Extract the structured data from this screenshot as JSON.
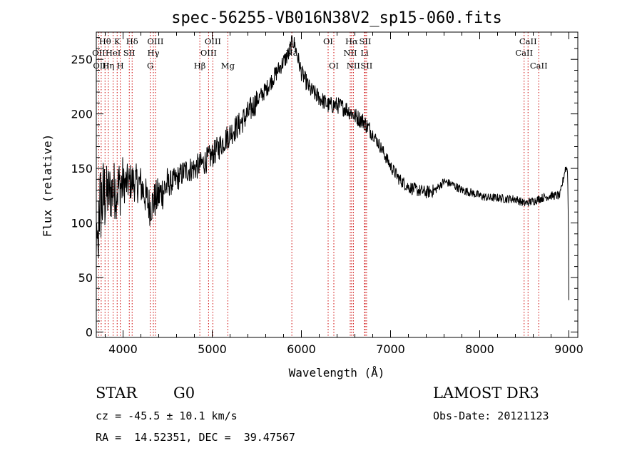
{
  "chart_data": {
    "type": "line",
    "title": "spec-56255-VB016N38V2_sp15-060.fits",
    "xlabel": "Wavelength (Å)",
    "ylabel": "Flux (relative)",
    "xlim": [
      3700,
      9100
    ],
    "ylim": [
      -5,
      275
    ],
    "xticks": [
      4000,
      5000,
      6000,
      7000,
      8000,
      9000
    ],
    "yticks": [
      0,
      50,
      100,
      150,
      200,
      250
    ],
    "continuum": [
      [
        3700,
        110
      ],
      [
        3800,
        125
      ],
      [
        3900,
        130
      ],
      [
        4000,
        135
      ],
      [
        4100,
        138
      ],
      [
        4200,
        135
      ],
      [
        4300,
        115
      ],
      [
        4400,
        125
      ],
      [
        4500,
        135
      ],
      [
        4600,
        140
      ],
      [
        4700,
        148
      ],
      [
        4800,
        150
      ],
      [
        4900,
        155
      ],
      [
        5000,
        162
      ],
      [
        5100,
        172
      ],
      [
        5200,
        182
      ],
      [
        5300,
        190
      ],
      [
        5400,
        200
      ],
      [
        5500,
        212
      ],
      [
        5600,
        222
      ],
      [
        5700,
        235
      ],
      [
        5800,
        248
      ],
      [
        5860,
        255
      ],
      [
        5900,
        268
      ],
      [
        5930,
        262
      ],
      [
        6000,
        238
      ],
      [
        6100,
        222
      ],
      [
        6200,
        215
      ],
      [
        6300,
        208
      ],
      [
        6400,
        208
      ],
      [
        6500,
        205
      ],
      [
        6600,
        198
      ],
      [
        6700,
        193
      ],
      [
        6800,
        182
      ],
      [
        6900,
        168
      ],
      [
        7000,
        152
      ],
      [
        7100,
        140
      ],
      [
        7200,
        133
      ],
      [
        7300,
        130
      ],
      [
        7400,
        128
      ],
      [
        7500,
        130
      ],
      [
        7600,
        138
      ],
      [
        7700,
        135
      ],
      [
        7800,
        130
      ],
      [
        7900,
        128
      ],
      [
        8000,
        125
      ],
      [
        8100,
        123
      ],
      [
        8200,
        123
      ],
      [
        8300,
        122
      ],
      [
        8400,
        122
      ],
      [
        8500,
        118
      ],
      [
        8600,
        120
      ],
      [
        8700,
        123
      ],
      [
        8800,
        125
      ],
      [
        8900,
        125
      ],
      [
        8960,
        150
      ],
      [
        8985,
        150
      ],
      [
        8995,
        95
      ],
      [
        9000,
        30
      ]
    ],
    "spectral_lines": [
      {
        "label": "Hθ",
        "wavelength": 3798,
        "row": 0
      },
      {
        "label": "OII",
        "wavelength": 3727,
        "row": 1
      },
      {
        "label": "OIII",
        "wavelength": 3755,
        "row": 2
      },
      {
        "label": "K",
        "wavelength": 3934,
        "row": 0
      },
      {
        "label": "Hη",
        "wavelength": 3835,
        "row": 2
      },
      {
        "label": "HeI",
        "wavelength": 3889,
        "row": 1
      },
      {
        "label": "SII",
        "wavelength": 4070,
        "row": 1
      },
      {
        "label": "H",
        "wavelength": 3969,
        "row": 2
      },
      {
        "label": "Hδ",
        "wavelength": 4102,
        "row": 0
      },
      {
        "label": "OIII",
        "wavelength": 4363,
        "row": 0
      },
      {
        "label": "Hγ",
        "wavelength": 4340,
        "row": 1
      },
      {
        "label": "G",
        "wavelength": 4305,
        "row": 2
      },
      {
        "label": "OIII",
        "wavelength": 5007,
        "row": 0
      },
      {
        "label": "OIII",
        "wavelength": 4959,
        "row": 1
      },
      {
        "label": "Hβ",
        "wavelength": 4861,
        "row": 2
      },
      {
        "label": "Mg",
        "wavelength": 5175,
        "row": 2
      },
      {
        "label": "Na",
        "wavelength": 5893,
        "row": 1
      },
      {
        "label": "OI",
        "wavelength": 6300,
        "row": 0
      },
      {
        "label": "OI",
        "wavelength": 6364,
        "row": 2
      },
      {
        "label": "Hα",
        "wavelength": 6563,
        "row": 0
      },
      {
        "label": "SII",
        "wavelength": 6716,
        "row": 0
      },
      {
        "label": "NII",
        "wavelength": 6548,
        "row": 1
      },
      {
        "label": "Li",
        "wavelength": 6708,
        "row": 1
      },
      {
        "label": "NII",
        "wavelength": 6583,
        "row": 2
      },
      {
        "label": "SII",
        "wavelength": 6731,
        "row": 2
      },
      {
        "label": "CaII",
        "wavelength": 8542,
        "row": 0
      },
      {
        "label": "CaII",
        "wavelength": 8498,
        "row": 1
      },
      {
        "label": "CaII",
        "wavelength": 8662,
        "row": 2
      }
    ],
    "line_color": "#000000",
    "marker_color": "#cc0000"
  },
  "info": {
    "class": "STAR",
    "subclass": "G0",
    "survey": "LAMOST DR3",
    "redshift": "cz = -45.5 ± 10.1 km/s",
    "obs_date": "Obs-Date: 20121123",
    "coords": "RA =  14.52351, DEC =  39.47567"
  }
}
